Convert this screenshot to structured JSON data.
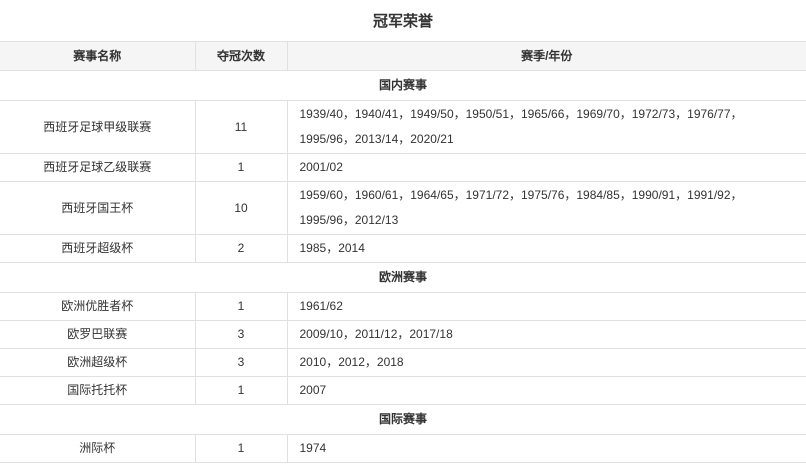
{
  "page": {
    "title": "冠军荣誉"
  },
  "table": {
    "columns": [
      "赛事名称",
      "夺冠次数",
      "赛季/年份"
    ],
    "sections": [
      {
        "label": "国内赛事",
        "rows": [
          {
            "competition": "西班牙足球甲级联赛",
            "count": "11",
            "seasons": "1939/40，1940/41，1949/50，1950/51，1965/66，1969/70，1972/73，1976/77，1995/96，2013/14，2020/21"
          },
          {
            "competition": "西班牙足球乙级联赛",
            "count": "1",
            "seasons": "2001/02"
          },
          {
            "competition": "西班牙国王杯",
            "count": "10",
            "seasons": "1959/60，1960/61，1964/65，1971/72，1975/76，1984/85，1990/91，1991/92，1995/96，2012/13"
          },
          {
            "competition": "西班牙超级杯",
            "count": "2",
            "seasons": "1985，2014"
          }
        ]
      },
      {
        "label": "欧洲赛事",
        "rows": [
          {
            "competition": "欧洲优胜者杯",
            "count": "1",
            "seasons": "1961/62"
          },
          {
            "competition": "欧罗巴联赛",
            "count": "3",
            "seasons": "2009/10，2011/12，2017/18"
          },
          {
            "competition": "欧洲超级杯",
            "count": "3",
            "seasons": "2010，2012，2018"
          },
          {
            "competition": "国际托托杯",
            "count": "1",
            "seasons": "2007"
          }
        ]
      },
      {
        "label": "国际赛事",
        "rows": [
          {
            "competition": "洲际杯",
            "count": "1",
            "seasons": "1974"
          }
        ]
      }
    ]
  },
  "colors": {
    "page_bg": "#ffffff",
    "text": "#333333",
    "border": "#e0e0e0",
    "header_bg": "#f5f5f5"
  }
}
